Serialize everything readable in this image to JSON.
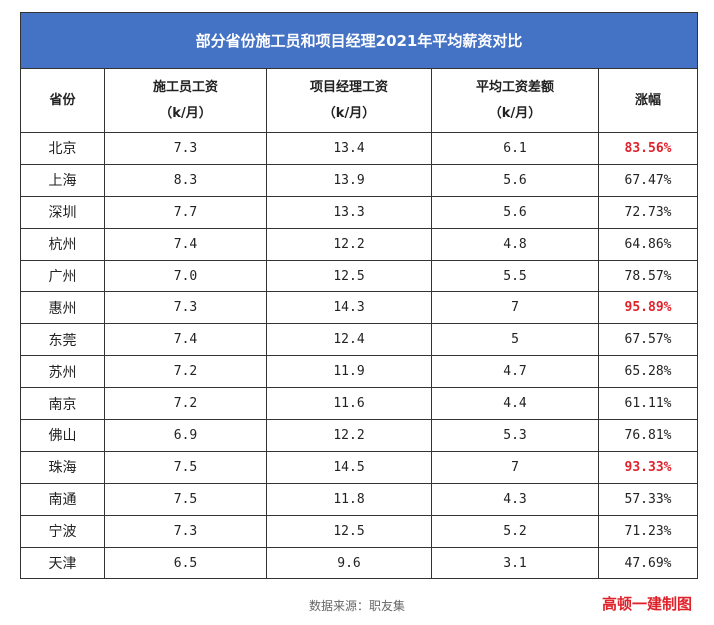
{
  "title": "部分省份施工员和项目经理2021年平均薪资对比",
  "headers": {
    "province": "省份",
    "worker_l1": "施工员工资",
    "worker_l2": "（k/月）",
    "manager_l1": "项目经理工资",
    "manager_l2": "（k/月）",
    "diff_l1": "平均工资差额",
    "diff_l2": "（k/月）",
    "growth": "涨幅"
  },
  "rows": [
    {
      "province": "北京",
      "worker": "7.3",
      "manager": "13.4",
      "diff": "6.1",
      "growth": "83.56%",
      "highlight": true
    },
    {
      "province": "上海",
      "worker": "8.3",
      "manager": "13.9",
      "diff": "5.6",
      "growth": "67.47%",
      "highlight": false
    },
    {
      "province": "深圳",
      "worker": "7.7",
      "manager": "13.3",
      "diff": "5.6",
      "growth": "72.73%",
      "highlight": false
    },
    {
      "province": "杭州",
      "worker": "7.4",
      "manager": "12.2",
      "diff": "4.8",
      "growth": "64.86%",
      "highlight": false
    },
    {
      "province": "广州",
      "worker": "7.0",
      "manager": "12.5",
      "diff": "5.5",
      "growth": "78.57%",
      "highlight": false
    },
    {
      "province": "惠州",
      "worker": "7.3",
      "manager": "14.3",
      "diff": "7",
      "growth": "95.89%",
      "highlight": true
    },
    {
      "province": "东莞",
      "worker": "7.4",
      "manager": "12.4",
      "diff": "5",
      "growth": "67.57%",
      "highlight": false
    },
    {
      "province": "苏州",
      "worker": "7.2",
      "manager": "11.9",
      "diff": "4.7",
      "growth": "65.28%",
      "highlight": false
    },
    {
      "province": "南京",
      "worker": "7.2",
      "manager": "11.6",
      "diff": "4.4",
      "growth": "61.11%",
      "highlight": false
    },
    {
      "province": "佛山",
      "worker": "6.9",
      "manager": "12.2",
      "diff": "5.3",
      "growth": "76.81%",
      "highlight": false
    },
    {
      "province": "珠海",
      "worker": "7.5",
      "manager": "14.5",
      "diff": "7",
      "growth": "93.33%",
      "highlight": true
    },
    {
      "province": "南通",
      "worker": "7.5",
      "manager": "11.8",
      "diff": "4.3",
      "growth": "57.33%",
      "highlight": false
    },
    {
      "province": "宁波",
      "worker": "7.3",
      "manager": "12.5",
      "diff": "5.2",
      "growth": "71.23%",
      "highlight": false
    },
    {
      "province": "天津",
      "worker": "6.5",
      "manager": "9.6",
      "diff": "3.1",
      "growth": "47.69%",
      "highlight": false
    }
  ],
  "highlight_color": "#e0222a",
  "title_bg": "#4472c4",
  "source": "数据来源：职友集",
  "brand": "高顿一建制图"
}
